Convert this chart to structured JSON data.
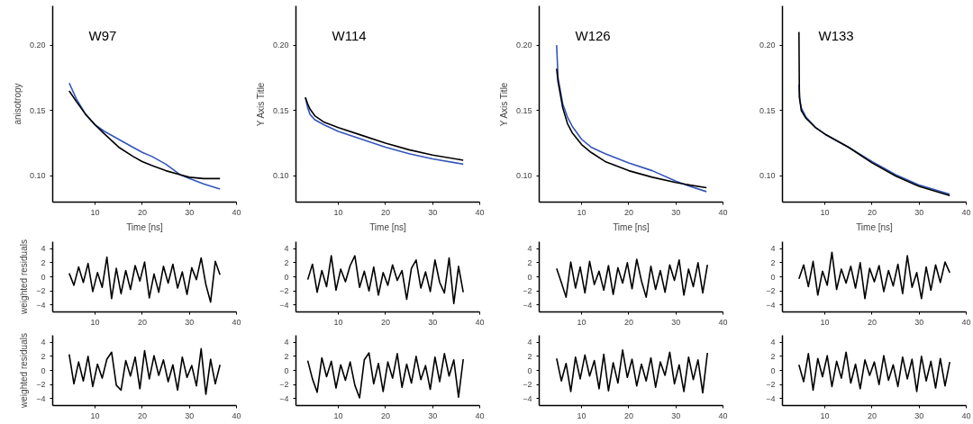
{
  "chart_data": [
    {
      "type": "line",
      "annotations": [
        "W97"
      ],
      "xlabel": "Time [ns]",
      "ylabel": "anisotropy",
      "xlim": [
        1,
        40
      ],
      "ylim": [
        0.08,
        0.23
      ],
      "xticks": [
        10,
        20,
        30,
        40
      ],
      "yticks": [
        {
          "value": 0.1,
          "label": "0.10"
        },
        {
          "value": 0.15,
          "label": "0.15"
        },
        {
          "value": 0.2,
          "label": "0.20"
        }
      ],
      "grid": false,
      "series": [
        {
          "color": "#3355bb",
          "x": [
            4.5,
            6,
            8,
            10,
            12,
            15,
            18,
            20,
            22,
            25,
            28,
            30,
            33,
            36.5
          ],
          "values": [
            0.171,
            0.159,
            0.147,
            0.139,
            0.134,
            0.128,
            0.122,
            0.118,
            0.115,
            0.109,
            0.101,
            0.098,
            0.094,
            0.09
          ]
        },
        {
          "color": "#000000",
          "x": [
            4.5,
            6,
            8,
            10,
            12,
            15,
            18,
            20,
            22,
            25,
            28,
            30,
            33,
            36.5
          ],
          "values": [
            0.165,
            0.157,
            0.147,
            0.139,
            0.132,
            0.122,
            0.115,
            0.111,
            0.108,
            0.104,
            0.101,
            0.099,
            0.098,
            0.098
          ]
        }
      ]
    },
    {
      "type": "line",
      "annotations": [
        "W114"
      ],
      "xlabel": "Time [ns]",
      "ylabel": "Y Axis Title",
      "xlim": [
        1,
        40
      ],
      "ylim": [
        0.08,
        0.23
      ],
      "xticks": [
        10,
        20,
        30,
        40
      ],
      "yticks": [
        {
          "value": 0.1,
          "label": "0.10"
        },
        {
          "value": 0.15,
          "label": "0.15"
        },
        {
          "value": 0.2,
          "label": "0.20"
        }
      ],
      "grid": false,
      "series": [
        {
          "color": "#3355bb",
          "x": [
            3,
            3.5,
            4,
            5,
            7,
            10,
            15,
            20,
            25,
            30,
            36.5
          ],
          "values": [
            0.16,
            0.152,
            0.147,
            0.143,
            0.139,
            0.134,
            0.128,
            0.122,
            0.117,
            0.113,
            0.109
          ]
        },
        {
          "color": "#000000",
          "x": [
            3,
            3.5,
            4,
            5,
            7,
            10,
            15,
            20,
            25,
            30,
            36.5
          ],
          "values": [
            0.16,
            0.155,
            0.151,
            0.146,
            0.141,
            0.137,
            0.131,
            0.125,
            0.12,
            0.116,
            0.112
          ]
        }
      ]
    },
    {
      "type": "line",
      "annotations": [
        "W126"
      ],
      "xlabel": "Time [ns]",
      "ylabel": "Y Axis Title",
      "xlim": [
        1,
        40
      ],
      "ylim": [
        0.08,
        0.23
      ],
      "xticks": [
        10,
        20,
        30,
        40
      ],
      "yticks": [
        {
          "value": 0.1,
          "label": "0.10"
        },
        {
          "value": 0.15,
          "label": "0.15"
        },
        {
          "value": 0.2,
          "label": "0.20"
        }
      ],
      "grid": false,
      "series": [
        {
          "color": "#3355bb",
          "x": [
            4.7,
            5,
            6,
            7,
            8,
            10,
            12,
            15,
            20,
            25,
            30,
            33,
            36.5
          ],
          "values": [
            0.2,
            0.175,
            0.155,
            0.145,
            0.138,
            0.128,
            0.122,
            0.117,
            0.11,
            0.104,
            0.096,
            0.092,
            0.088
          ]
        },
        {
          "color": "#000000",
          "x": [
            4.7,
            5,
            6,
            7,
            8,
            10,
            12,
            15,
            20,
            25,
            30,
            33,
            36.5
          ],
          "values": [
            0.182,
            0.172,
            0.152,
            0.14,
            0.133,
            0.124,
            0.118,
            0.111,
            0.104,
            0.099,
            0.095,
            0.093,
            0.091
          ]
        }
      ]
    },
    {
      "type": "line",
      "annotations": [
        "W133"
      ],
      "xlabel": "Time [ns]",
      "xlim": [
        1,
        40
      ],
      "ylim": [
        0.08,
        0.23
      ],
      "xticks": [
        10,
        20,
        30,
        40
      ],
      "yticks": [
        {
          "value": 0.1,
          "label": "0.10"
        },
        {
          "value": 0.15,
          "label": "0.15"
        },
        {
          "value": 0.2,
          "label": "0.20"
        }
      ],
      "grid": false,
      "series": [
        {
          "color": "#3355bb",
          "x": [
            4.5,
            4.7,
            5,
            6,
            8,
            10,
            15,
            20,
            25,
            30,
            36.5
          ],
          "values": [
            0.17,
            0.158,
            0.152,
            0.145,
            0.137,
            0.132,
            0.122,
            0.111,
            0.101,
            0.093,
            0.086
          ]
        },
        {
          "color": "#000000",
          "x": [
            4.5,
            4.6,
            5,
            6,
            8,
            10,
            15,
            20,
            25,
            30,
            36.5
          ],
          "values": [
            0.21,
            0.16,
            0.15,
            0.144,
            0.137,
            0.132,
            0.122,
            0.11,
            0.1,
            0.092,
            0.085
          ]
        }
      ]
    },
    {
      "type": "line",
      "ylabel": "weighted residuals",
      "xlim": [
        1,
        40
      ],
      "ylim": [
        -5,
        5
      ],
      "xticks": [
        10,
        20,
        30,
        40
      ],
      "yticks": [
        -4,
        -2,
        0,
        2,
        4
      ],
      "grid": false,
      "series": [
        {
          "color": "#000000",
          "x": [
            4.5,
            5.5,
            6.5,
            7.5,
            8.5,
            9.5,
            10.5,
            11.5,
            12.5,
            13.5,
            14.5,
            15.5,
            16.5,
            17.5,
            18.5,
            19.5,
            20.5,
            21.5,
            22.5,
            23.5,
            24.5,
            25.5,
            26.5,
            27.5,
            28.5,
            29.5,
            30.5,
            31.5,
            32.5,
            33.5,
            34.5,
            35.5,
            36.5
          ],
          "values": [
            0.5,
            -1.2,
            1.4,
            -0.8,
            1.9,
            -2.1,
            0.6,
            -1.5,
            2.8,
            -3.1,
            1.2,
            -2.4,
            0.9,
            -1.8,
            1.6,
            -0.6,
            2.1,
            -3.0,
            0.4,
            -2.2,
            1.5,
            -0.9,
            1.8,
            -1.6,
            0.7,
            -2.5,
            1.3,
            -0.4,
            2.7,
            -1.1,
            -3.6,
            2.2,
            0.3
          ]
        }
      ]
    },
    {
      "type": "line",
      "xlim": [
        1,
        40
      ],
      "ylim": [
        -5,
        5
      ],
      "xticks": [
        10,
        20,
        30,
        40
      ],
      "yticks": [
        -4,
        -2,
        0,
        2,
        4
      ],
      "grid": false,
      "series": [
        {
          "color": "#000000",
          "x": [
            3.5,
            4.5,
            5.5,
            6.5,
            7.5,
            8.5,
            9.5,
            10.5,
            11.5,
            12.5,
            13.5,
            14.5,
            15.5,
            16.5,
            17.5,
            18.5,
            19.5,
            20.5,
            21.5,
            22.5,
            23.5,
            24.5,
            25.5,
            26.5,
            27.5,
            28.5,
            29.5,
            30.5,
            31.5,
            32.5,
            33.5,
            34.5,
            35.5,
            36.5
          ],
          "values": [
            -0.4,
            1.8,
            -2.2,
            0.9,
            -1.4,
            3.0,
            -1.9,
            1.1,
            -0.7,
            1.6,
            3.0,
            -1.5,
            0.8,
            -2.0,
            1.4,
            -2.6,
            0.6,
            -1.2,
            1.7,
            -0.5,
            0.9,
            -3.2,
            1.2,
            2.4,
            -1.6,
            0.7,
            -2.1,
            2.4,
            -0.8,
            -2.3,
            2.7,
            -3.8,
            1.5,
            -2.2
          ]
        }
      ]
    },
    {
      "type": "line",
      "xlim": [
        1,
        40
      ],
      "ylim": [
        -5,
        5
      ],
      "xticks": [
        10,
        20,
        30,
        40
      ],
      "yticks": [
        -4,
        -2,
        0,
        2,
        4
      ],
      "grid": false,
      "series": [
        {
          "color": "#000000",
          "x": [
            4.7,
            5.7,
            6.7,
            7.7,
            8.7,
            9.7,
            10.7,
            11.7,
            12.7,
            13.7,
            14.7,
            15.7,
            16.7,
            17.7,
            18.7,
            19.7,
            20.7,
            21.7,
            22.7,
            23.7,
            24.7,
            25.7,
            26.7,
            27.7,
            28.7,
            29.7,
            30.7,
            31.7,
            32.7,
            33.7,
            34.7,
            35.7,
            36.7
          ],
          "values": [
            1.2,
            -0.8,
            -2.9,
            2.1,
            -1.6,
            1.4,
            -2.3,
            2.2,
            -1.1,
            0.8,
            -1.9,
            1.6,
            -2.5,
            1.3,
            -0.9,
            2.0,
            -1.7,
            2.5,
            -0.6,
            -2.9,
            1.5,
            -1.8,
            0.9,
            -2.2,
            1.7,
            -0.5,
            2.4,
            -2.6,
            1.1,
            -1.4,
            2.0,
            -2.3,
            1.7
          ]
        }
      ]
    },
    {
      "type": "line",
      "xlim": [
        1,
        40
      ],
      "ylim": [
        -5,
        5
      ],
      "xticks": [
        10,
        20,
        30,
        40
      ],
      "yticks": [
        -4,
        -2,
        0,
        2,
        4
      ],
      "grid": false,
      "series": [
        {
          "color": "#000000",
          "x": [
            4.5,
            5.5,
            6.5,
            7.5,
            8.5,
            9.5,
            10.5,
            11.5,
            12.5,
            13.5,
            14.5,
            15.5,
            16.5,
            17.5,
            18.5,
            19.5,
            20.5,
            21.5,
            22.5,
            23.5,
            24.5,
            25.5,
            26.5,
            27.5,
            28.5,
            29.5,
            30.5,
            31.5,
            32.5,
            33.5,
            34.5,
            35.5,
            36.5
          ],
          "values": [
            -0.3,
            1.7,
            -1.4,
            2.2,
            -2.6,
            0.8,
            -1.2,
            3.5,
            -1.8,
            1.1,
            -0.9,
            1.5,
            -1.6,
            2.0,
            -3.1,
            1.2,
            -0.7,
            1.6,
            -2.1,
            0.9,
            -1.3,
            1.8,
            -2.4,
            3.0,
            -1.5,
            0.6,
            -3.1,
            1.4,
            -1.9,
            1.7,
            -0.8,
            2.1,
            0.6
          ]
        }
      ]
    },
    {
      "type": "line",
      "ylabel": "weighted residuals",
      "xlim": [
        1,
        40
      ],
      "ylim": [
        -5,
        5
      ],
      "xticks": [
        10,
        20,
        30,
        40
      ],
      "yticks": [
        -4,
        -2,
        0,
        2,
        4
      ],
      "grid": false,
      "series": [
        {
          "color": "#000000",
          "x": [
            4.5,
            5.5,
            6.5,
            7.5,
            8.5,
            9.5,
            10.5,
            11.5,
            12.5,
            13.5,
            14.5,
            15.5,
            16.5,
            17.5,
            18.5,
            19.5,
            20.5,
            21.5,
            22.5,
            23.5,
            24.5,
            25.5,
            26.5,
            27.5,
            28.5,
            29.5,
            30.5,
            31.5,
            32.5,
            33.5,
            34.5,
            35.5,
            36.5
          ],
          "values": [
            2.3,
            -1.9,
            1.2,
            -1.5,
            2.0,
            -2.3,
            0.9,
            -1.1,
            1.6,
            2.6,
            -2.1,
            -2.8,
            1.4,
            -0.8,
            1.9,
            -2.6,
            2.8,
            -1.2,
            2.1,
            -0.7,
            1.5,
            -1.6,
            0.8,
            -2.8,
            1.9,
            -1.0,
            0.7,
            -2.2,
            3.1,
            -3.4,
            1.6,
            -1.9,
            0.8
          ]
        }
      ]
    },
    {
      "type": "line",
      "xlim": [
        1,
        40
      ],
      "ylim": [
        -5,
        5
      ],
      "xticks": [
        10,
        20,
        30,
        40
      ],
      "yticks": [
        -4,
        -2,
        0,
        2,
        4
      ],
      "grid": false,
      "series": [
        {
          "color": "#000000",
          "x": [
            3.5,
            4.5,
            5.5,
            6.5,
            7.5,
            8.5,
            9.5,
            10.5,
            11.5,
            12.5,
            13.5,
            14.5,
            15.5,
            16.5,
            17.5,
            18.5,
            19.5,
            20.5,
            21.5,
            22.5,
            23.5,
            24.5,
            25.5,
            26.5,
            27.5,
            28.5,
            29.5,
            30.5,
            31.5,
            32.5,
            33.5,
            34.5,
            35.5,
            36.5
          ],
          "values": [
            1.4,
            -1.2,
            -3.1,
            1.8,
            -0.9,
            1.3,
            -2.5,
            0.8,
            -1.4,
            1.2,
            -2.1,
            -3.9,
            1.5,
            2.5,
            -1.9,
            1.0,
            -3.0,
            1.2,
            -1.1,
            2.4,
            -2.4,
            0.9,
            -1.8,
            2.0,
            -1.3,
            0.7,
            -2.7,
            1.9,
            -1.6,
            2.4,
            -0.8,
            1.5,
            -3.8,
            1.6
          ]
        }
      ]
    },
    {
      "type": "line",
      "xlim": [
        1,
        40
      ],
      "ylim": [
        -5,
        5
      ],
      "xticks": [
        10,
        20,
        30,
        40
      ],
      "yticks": [
        -4,
        -2,
        0,
        2,
        4
      ],
      "grid": false,
      "series": [
        {
          "color": "#000000",
          "x": [
            4.7,
            5.7,
            6.7,
            7.7,
            8.7,
            9.7,
            10.7,
            11.7,
            12.7,
            13.7,
            14.7,
            15.7,
            16.7,
            17.7,
            18.7,
            19.7,
            20.7,
            21.7,
            22.7,
            23.7,
            24.7,
            25.7,
            26.7,
            27.7,
            28.7,
            29.7,
            30.7,
            31.7,
            32.7,
            33.7,
            34.7,
            35.7,
            36.7
          ],
          "values": [
            1.7,
            -1.5,
            1.0,
            -3.0,
            1.9,
            -1.2,
            2.2,
            -0.8,
            1.4,
            -2.6,
            2.3,
            -2.9,
            1.1,
            -1.8,
            2.9,
            -1.0,
            1.6,
            -2.2,
            0.9,
            -1.5,
            1.8,
            -2.4,
            1.2,
            -0.7,
            2.6,
            -1.9,
            0.8,
            -3.0,
            1.9,
            -1.3,
            1.5,
            -3.2,
            2.5
          ]
        }
      ]
    },
    {
      "type": "line",
      "xlim": [
        1,
        40
      ],
      "ylim": [
        -5,
        5
      ],
      "xticks": [
        10,
        20,
        30,
        40
      ],
      "yticks": [
        -4,
        -2,
        0,
        2,
        4
      ],
      "grid": false,
      "series": [
        {
          "color": "#000000",
          "x": [
            4.5,
            5.5,
            6.5,
            7.5,
            8.5,
            9.5,
            10.5,
            11.5,
            12.5,
            13.5,
            14.5,
            15.5,
            16.5,
            17.5,
            18.5,
            19.5,
            20.5,
            21.5,
            22.5,
            23.5,
            24.5,
            25.5,
            26.5,
            27.5,
            28.5,
            29.5,
            30.5,
            31.5,
            32.5,
            33.5,
            34.5,
            35.5,
            36.5
          ],
          "values": [
            0.8,
            -1.6,
            2.4,
            -2.8,
            1.7,
            -0.9,
            2.1,
            -2.3,
            1.3,
            -1.1,
            2.6,
            -1.8,
            0.9,
            -2.6,
            1.5,
            -0.7,
            1.2,
            -2.0,
            2.1,
            -1.4,
            0.8,
            -2.3,
            1.9,
            -1.2,
            1.6,
            -3.0,
            2.0,
            -1.5,
            1.3,
            -2.5,
            1.7,
            -2.2,
            1.2
          ]
        }
      ]
    }
  ]
}
